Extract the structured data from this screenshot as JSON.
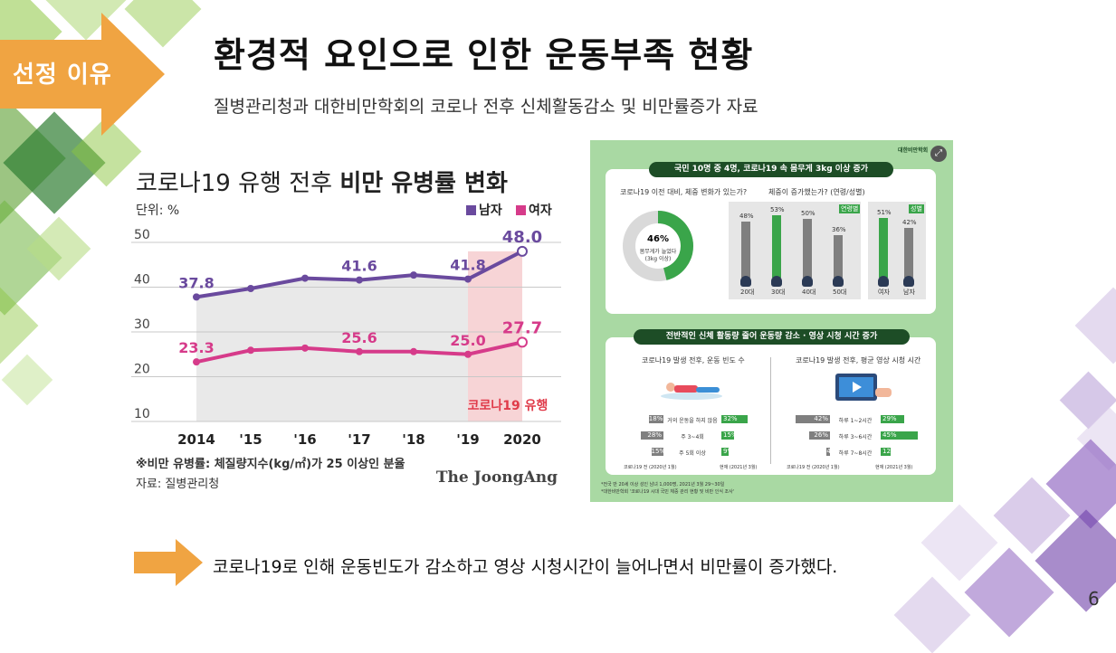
{
  "section_badge": {
    "label": "선정 이유",
    "color": "#f0a442"
  },
  "title": "환경적 요인으로 인한 운동부족 현황",
  "subtitle": "질병관리청과 대한비만학회의 코로나 전후 신체활동감소 및 비만률증가 자료",
  "chart": {
    "title_plain": "코로나19 유행 전후 ",
    "title_bold": "비만 유병률 변화",
    "unit_label": "단위: %",
    "covid_label": "코로나19 유행",
    "note": "※비만 유병률: 체질량지수(kg/㎡)가 25 이상인 분율",
    "source": "자료: 질병관리청",
    "brand": "The JoongAng"
  },
  "chart_data": {
    "type": "line",
    "categories": [
      "2014",
      "'15",
      "'16",
      "'17",
      "'18",
      "'19",
      "2020"
    ],
    "y_ticks": [
      "50",
      "40",
      "30",
      "20",
      "10"
    ],
    "ylim": [
      10,
      50
    ],
    "legend_position": "top-right",
    "series": [
      {
        "name": "남자",
        "color": "#6a4a9e",
        "values": [
          37.8,
          39.7,
          42.0,
          41.6,
          42.7,
          41.8,
          48.0
        ],
        "labels": [
          "37.8",
          "",
          "",
          "41.6",
          "",
          "41.8",
          "48.0"
        ]
      },
      {
        "name": "여자",
        "color": "#d63b8a",
        "values": [
          23.3,
          25.9,
          26.4,
          25.6,
          25.6,
          25.0,
          27.7
        ],
        "labels": [
          "23.3",
          "",
          "",
          "25.6",
          "",
          "25.0",
          "27.7"
        ]
      }
    ]
  },
  "infographic": {
    "org": "대한비만학회",
    "banner1": "국민 10명 중 4명, 코로나19 속 몸무게 3kg 이상 증가",
    "q1": "코로나19 이전 대비, 체중 변화가 있는가?",
    "donut": {
      "percent_value": 46,
      "percent": "46%",
      "caption1": "몸무게가 늘었다",
      "caption2": "(3kg 이상)"
    },
    "q2": "체중이 증가했는가? (연령/성별)",
    "age_tag": "연령별",
    "sex_tag": "성별",
    "age_bars": [
      {
        "label": "20대",
        "value": "48%",
        "v": 48
      },
      {
        "label": "30대",
        "value": "53%",
        "v": 53
      },
      {
        "label": "40대",
        "value": "50%",
        "v": 50
      },
      {
        "label": "50대",
        "value": "36%",
        "v": 36
      }
    ],
    "sex_bars": [
      {
        "label": "여자",
        "value": "51%",
        "v": 51
      },
      {
        "label": "남자",
        "value": "42%",
        "v": 42
      }
    ],
    "banner2": "전반적인 신체 활동량 줄어 운동량 감소 · 영상 시청 시간 증가",
    "q3": "코로나19 발생 전후, 운동 빈도 수",
    "q4": "코로나19 발생 전후, 평균 영상 시청 시간",
    "exercise_rows": [
      {
        "label": "거의 운동을 하지 않음",
        "before": "18%",
        "after": "32%",
        "b": 18,
        "a": 32
      },
      {
        "label": "주 3~4회",
        "before": "28%",
        "after": "15%",
        "b": 28,
        "a": 15
      },
      {
        "label": "주 5회 이상",
        "before": "15%",
        "after": "9%",
        "b": 15,
        "a": 9
      }
    ],
    "tv_rows": [
      {
        "label": "하루 1~2시간",
        "before": "42%",
        "after": "29%",
        "b": 42,
        "a": 29
      },
      {
        "label": "하루 3~6시간",
        "before": "26%",
        "after": "45%",
        "b": 26,
        "a": 45
      },
      {
        "label": "하루 7~8시간",
        "before": "4%",
        "after": "12%",
        "b": 4,
        "a": 12
      }
    ],
    "before_label": "코로나19 전 (2020년 1월)",
    "after_label": "현재 (2021년 3월)",
    "footnote1": "*전국 만 20세 이상 성인 남녀 1,000명, 2021년 3월 29~30일",
    "footnote2": "*대한비만학회 '코로나19 시대 국민 체중 관리 현황 및 비만 인식 조사'"
  },
  "conclusion": "코로나19로 인해 운동빈도가 감소하고 영상 시청시간이 늘어나면서 비만률이 증가했다.",
  "page_number": "6"
}
